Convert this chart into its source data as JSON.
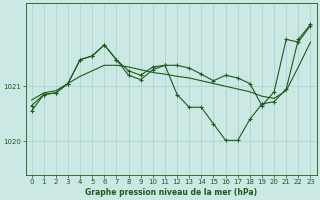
{
  "title": "Graphe pression niveau de la mer (hPa)",
  "bg_color": "#cce8e4",
  "plot_bg_color": "#cce8e4",
  "grid_color": "#b0d4d0",
  "line_color": "#1a5c1a",
  "xlim": [
    -0.5,
    23.5
  ],
  "ylim": [
    1019.4,
    1022.5
  ],
  "yticks": [
    1020,
    1021
  ],
  "xticks": [
    0,
    1,
    2,
    3,
    4,
    5,
    6,
    7,
    8,
    9,
    10,
    11,
    12,
    13,
    14,
    15,
    16,
    17,
    18,
    19,
    20,
    21,
    22,
    23
  ],
  "s1_x": [
    0,
    1,
    2,
    3,
    4,
    5,
    6,
    7,
    8,
    9,
    10,
    11,
    12,
    13,
    14,
    15,
    16,
    17,
    18,
    19,
    20,
    21,
    22,
    23
  ],
  "s1_y": [
    1020.75,
    1020.88,
    1020.92,
    1021.05,
    1021.18,
    1021.28,
    1021.38,
    1021.38,
    1021.35,
    1021.3,
    1021.25,
    1021.22,
    1021.18,
    1021.15,
    1021.1,
    1021.05,
    1021.0,
    1020.95,
    1020.9,
    1020.82,
    1020.78,
    1020.92,
    1021.35,
    1021.8
  ],
  "s2_x": [
    0,
    1,
    2,
    3,
    4,
    5,
    6,
    7,
    8,
    9,
    10,
    11,
    12,
    13,
    14,
    15,
    16,
    17,
    18,
    19,
    20,
    21,
    22,
    23
  ],
  "s2_y": [
    1020.65,
    1020.85,
    1020.88,
    1021.05,
    1021.48,
    1021.55,
    1021.75,
    1021.48,
    1021.28,
    1021.2,
    1021.35,
    1021.38,
    1021.38,
    1021.33,
    1021.22,
    1021.1,
    1021.2,
    1021.15,
    1021.05,
    1020.65,
    1020.9,
    1021.85,
    1021.8,
    1022.1
  ],
  "s3_x": [
    0,
    1,
    2,
    3,
    4,
    5,
    6,
    7,
    8,
    9,
    10,
    11,
    12,
    13,
    14,
    15,
    16,
    17,
    18,
    19,
    20,
    21,
    22,
    23
  ],
  "s3_y": [
    1020.55,
    1020.85,
    1020.88,
    1021.05,
    1021.48,
    1021.55,
    1021.75,
    1021.48,
    1021.2,
    1021.12,
    1021.3,
    1021.38,
    1020.85,
    1020.62,
    1020.62,
    1020.32,
    1020.02,
    1020.02,
    1020.4,
    1020.68,
    1020.72,
    1020.95,
    1021.85,
    1022.12
  ]
}
